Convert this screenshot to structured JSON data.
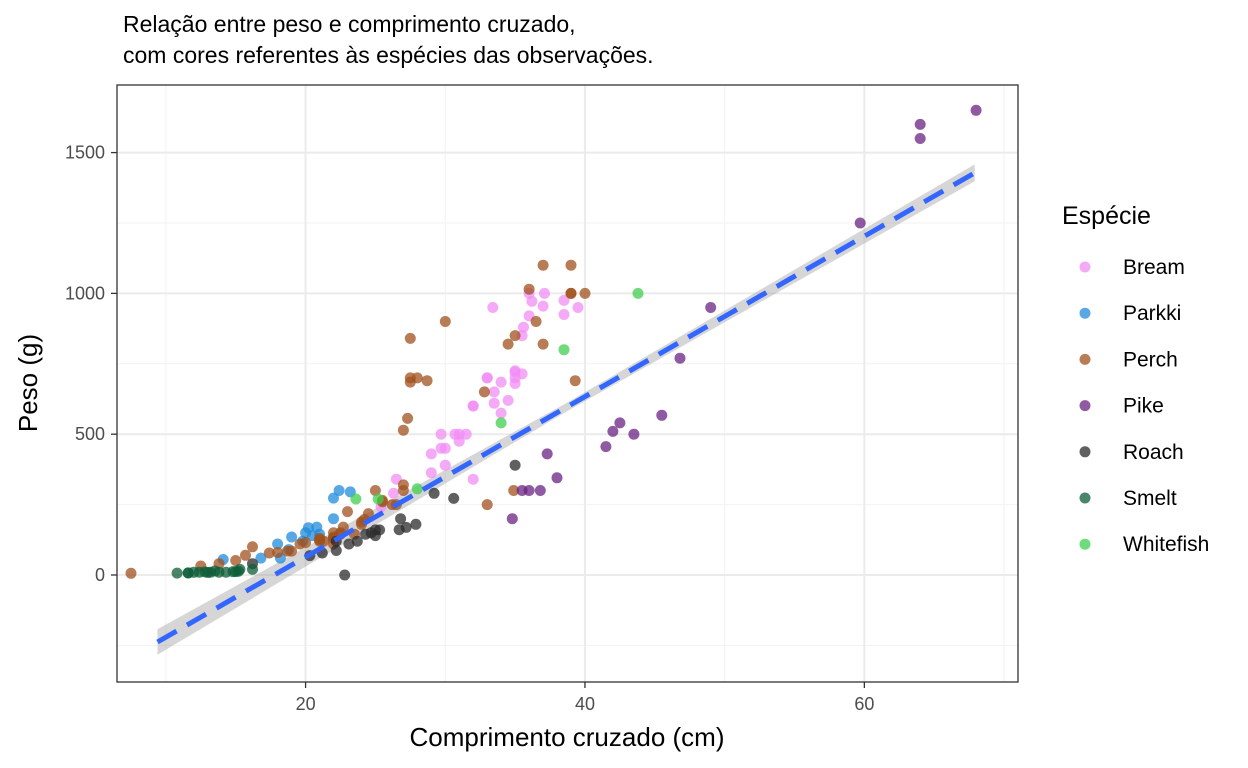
{
  "chart_data": {
    "type": "scatter",
    "title_lines": [
      "Relação entre peso e comprimento cruzado,",
      "com cores referentes às espécies das observações."
    ],
    "xlabel": "Comprimento cruzado (cm)",
    "ylabel": "Peso (g)",
    "xlim": [
      6.5,
      71
    ],
    "ylim": [
      -380,
      1740
    ],
    "x_ticks": [
      20,
      40,
      60
    ],
    "x_tick_labels": [
      "20",
      "40",
      "60"
    ],
    "y_ticks": [
      0,
      500,
      1000,
      1500
    ],
    "y_tick_labels": [
      "0",
      "500",
      "1000",
      "1500"
    ],
    "x_minor": [
      10,
      30,
      50,
      70
    ],
    "y_minor": [
      -250,
      250,
      750,
      1250
    ],
    "grid": true,
    "legend_title": "Espécie",
    "legend_position": "right",
    "series": [
      {
        "name": "Bream",
        "color": "#f28ef5",
        "points": [
          [
            25.4,
            242
          ],
          [
            26.3,
            290
          ],
          [
            26.5,
            340
          ],
          [
            29.0,
            363
          ],
          [
            29.0,
            430
          ],
          [
            29.7,
            450
          ],
          [
            29.7,
            500
          ],
          [
            30.0,
            390
          ],
          [
            30.0,
            450
          ],
          [
            30.7,
            500
          ],
          [
            31.0,
            475
          ],
          [
            31.0,
            500
          ],
          [
            31.5,
            500
          ],
          [
            32.0,
            340
          ],
          [
            32.0,
            600
          ],
          [
            32.0,
            600
          ],
          [
            33.0,
            700
          ],
          [
            33.0,
            700
          ],
          [
            33.5,
            610
          ],
          [
            33.5,
            650
          ],
          [
            34.0,
            575
          ],
          [
            34.0,
            685
          ],
          [
            34.5,
            620
          ],
          [
            35.0,
            680
          ],
          [
            35.0,
            700
          ],
          [
            35.0,
            725
          ],
          [
            35.0,
            720
          ],
          [
            35.5,
            714
          ],
          [
            35.5,
            850
          ],
          [
            36.0,
            1000
          ],
          [
            36.0,
            920
          ],
          [
            37.0,
            955
          ],
          [
            38.5,
            925
          ],
          [
            38.5,
            975
          ],
          [
            39.5,
            950
          ],
          [
            33.4,
            950
          ],
          [
            35.6,
            880
          ],
          [
            37.1,
            1000
          ],
          [
            36.2,
            972
          ]
        ]
      },
      {
        "name": "Parkki",
        "color": "#1f8bdb",
        "points": [
          [
            14.1,
            55
          ],
          [
            18.2,
            60
          ],
          [
            18.8,
            90
          ],
          [
            19.8,
            120
          ],
          [
            20.0,
            150
          ],
          [
            20.5,
            140
          ],
          [
            20.8,
            170
          ],
          [
            21.0,
            145
          ],
          [
            22.0,
            200
          ],
          [
            22.0,
            273
          ],
          [
            22.4,
            300
          ],
          [
            23.2,
            295
          ],
          [
            16.8,
            60
          ],
          [
            18.0,
            110
          ],
          [
            19.0,
            135
          ],
          [
            20.2,
            168
          ]
        ]
      },
      {
        "name": "Perch",
        "color": "#a0521d",
        "points": [
          [
            7.5,
            5.9
          ],
          [
            12.5,
            32
          ],
          [
            13.8,
            40
          ],
          [
            15.0,
            51.5
          ],
          [
            15.7,
            70
          ],
          [
            16.2,
            100
          ],
          [
            17.4,
            78
          ],
          [
            18.0,
            80
          ],
          [
            18.7,
            85
          ],
          [
            19.0,
            85
          ],
          [
            19.6,
            110
          ],
          [
            20.0,
            115
          ],
          [
            21.0,
            125
          ],
          [
            21.0,
            130
          ],
          [
            21.0,
            120
          ],
          [
            21.3,
            120
          ],
          [
            22.0,
            130
          ],
          [
            22.0,
            135
          ],
          [
            22.0,
            110
          ],
          [
            22.0,
            130
          ],
          [
            22.0,
            150
          ],
          [
            22.5,
            145
          ],
          [
            22.5,
            150
          ],
          [
            22.7,
            170
          ],
          [
            23.0,
            225
          ],
          [
            23.5,
            145
          ],
          [
            24.0,
            188
          ],
          [
            24.0,
            180
          ],
          [
            24.2,
            197
          ],
          [
            24.5,
            218
          ],
          [
            25.0,
            300
          ],
          [
            25.5,
            260
          ],
          [
            25.5,
            265
          ],
          [
            26.2,
            250
          ],
          [
            26.5,
            250
          ],
          [
            27.0,
            300
          ],
          [
            27.0,
            320
          ],
          [
            27.0,
            514
          ],
          [
            27.3,
            556
          ],
          [
            27.5,
            840
          ],
          [
            27.5,
            685
          ],
          [
            27.5,
            700
          ],
          [
            28.0,
            700
          ],
          [
            28.7,
            690
          ],
          [
            30.0,
            900
          ],
          [
            32.8,
            650
          ],
          [
            34.5,
            820
          ],
          [
            35.0,
            850
          ],
          [
            36.5,
            900
          ],
          [
            36.0,
            1015
          ],
          [
            37.0,
            820
          ],
          [
            37.0,
            1100
          ],
          [
            39.0,
            1000
          ],
          [
            39.0,
            1100
          ],
          [
            39.0,
            1000
          ],
          [
            40.0,
            1000
          ],
          [
            39.3,
            690
          ],
          [
            34.9,
            300
          ],
          [
            33.0,
            250
          ]
        ]
      },
      {
        "name": "Pike",
        "color": "#6a2383",
        "points": [
          [
            34.8,
            200
          ],
          [
            35.5,
            300
          ],
          [
            36.0,
            300
          ],
          [
            36.8,
            300
          ],
          [
            37.3,
            430
          ],
          [
            38.0,
            345
          ],
          [
            41.5,
            456
          ],
          [
            42.0,
            510
          ],
          [
            42.5,
            540
          ],
          [
            43.5,
            500
          ],
          [
            45.5,
            567
          ],
          [
            46.8,
            770
          ],
          [
            49.0,
            950
          ],
          [
            59.7,
            1250
          ],
          [
            64.0,
            1600
          ],
          [
            64.0,
            1550
          ],
          [
            68.0,
            1650
          ]
        ]
      },
      {
        "name": "Roach",
        "color": "#2b2b2b",
        "points": [
          [
            16.2,
            40
          ],
          [
            20.3,
            69
          ],
          [
            21.2,
            78
          ],
          [
            22.2,
            87
          ],
          [
            22.2,
            120
          ],
          [
            22.8,
            0
          ],
          [
            23.1,
            110
          ],
          [
            23.7,
            120
          ],
          [
            24.7,
            150
          ],
          [
            24.3,
            145
          ],
          [
            25.3,
            160
          ],
          [
            25.0,
            140
          ],
          [
            25.0,
            160
          ],
          [
            27.2,
            169
          ],
          [
            26.7,
            161
          ],
          [
            26.8,
            200
          ],
          [
            27.9,
            180
          ],
          [
            29.2,
            290
          ],
          [
            30.6,
            272
          ],
          [
            35.0,
            390
          ]
        ]
      },
      {
        "name": "Smelt",
        "color": "#0e5e38",
        "points": [
          [
            10.8,
            6.7
          ],
          [
            11.6,
            7.5
          ],
          [
            11.6,
            7.0
          ],
          [
            12.0,
            9.7
          ],
          [
            12.4,
            9.8
          ],
          [
            13.0,
            8.7
          ],
          [
            13.2,
            10.0
          ],
          [
            13.8,
            9.9
          ],
          [
            14.3,
            9.8
          ],
          [
            14.8,
            12.2
          ],
          [
            15.2,
            13.4
          ],
          [
            15.0,
            12.2
          ],
          [
            15.3,
            19.7
          ],
          [
            16.2,
            19.9
          ],
          [
            12.8,
            11.0
          ],
          [
            13.5,
            14.0
          ]
        ]
      },
      {
        "name": "Whitefish",
        "color": "#3fcf4e",
        "points": [
          [
            23.6,
            270
          ],
          [
            25.2,
            270
          ],
          [
            28.0,
            306
          ],
          [
            34.0,
            540
          ],
          [
            38.5,
            800
          ],
          [
            43.8,
            1000
          ]
        ]
      }
    ],
    "fit_line": {
      "x": [
        9.4,
        67.9
      ],
      "y": [
        -238,
        1428
      ],
      "ci_halfwidth_ends": [
        45,
        30
      ],
      "ci_halfwidth_mid": 15,
      "color": "#3366ff",
      "style": "dashed"
    }
  }
}
